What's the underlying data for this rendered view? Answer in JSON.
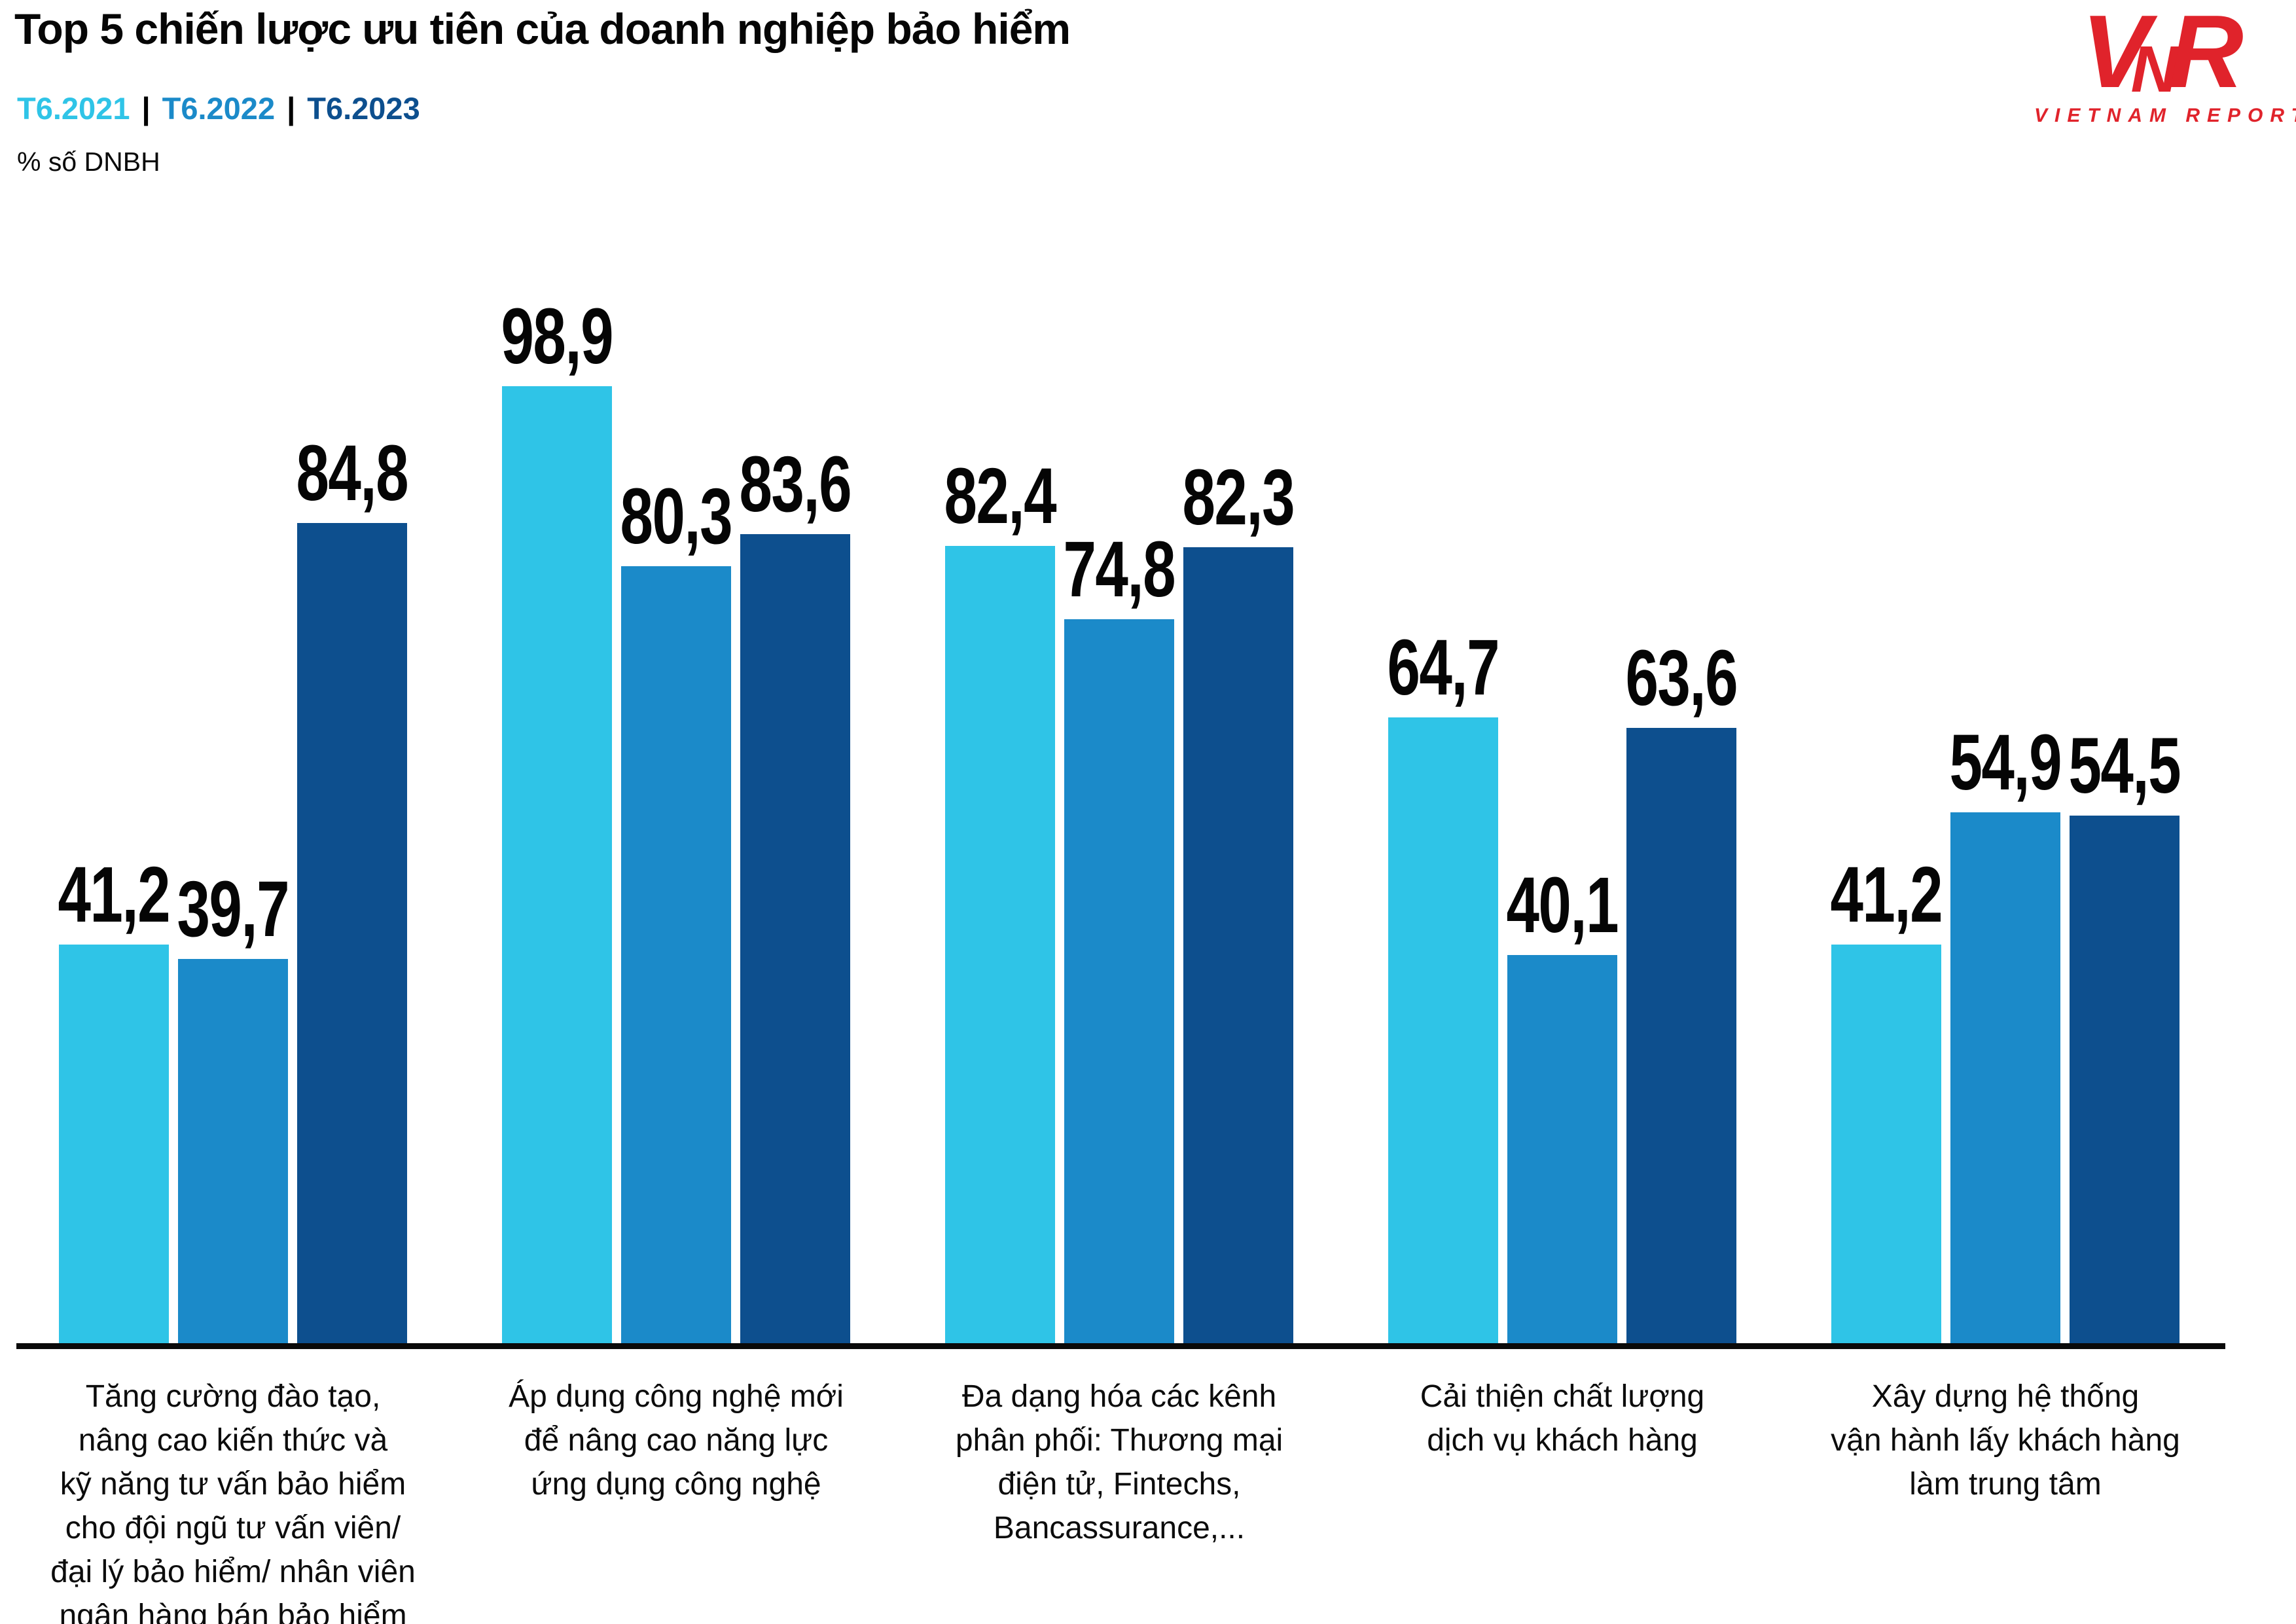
{
  "header": {
    "title": "Top 5 chiến lược ưu tiên của doanh nghiệp bảo hiểm",
    "unit_label": "% số DNBH",
    "legend_separator": "|"
  },
  "legend": [
    {
      "label": "T6.2021",
      "color": "#2FC4E7"
    },
    {
      "label": "T6.2022",
      "color": "#1B8AC9"
    },
    {
      "label": "T6.2023",
      "color": "#0D4F8E"
    }
  ],
  "logo": {
    "letters": [
      "V",
      "N",
      "R"
    ],
    "subtext": "VIETNAM REPORT",
    "color": "#E0232B"
  },
  "chart_data": {
    "type": "bar",
    "title": "Top 5 chiến lược ưu tiên của doanh nghiệp bảo hiểm",
    "ylabel": "% số DNBH",
    "ylim": [
      0,
      100
    ],
    "grid": false,
    "legend_position": "top-left",
    "value_decimal_separator": ",",
    "axis_color": "#0a0a0a",
    "categories": [
      "Tăng cường đào tạo,\nnâng cao kiến thức và\nkỹ năng tư vấn bảo hiểm\ncho đội ngũ tư vấn viên/\nđại lý bảo hiểm/ nhân viên\nngân hàng bán bảo hiểm",
      "Áp dụng công nghệ mới\nđể nâng cao năng lực\nứng dụng công nghệ",
      "Đa dạng hóa các kênh\nphân phối: Thương mại\nđiện tử, Fintechs,\nBancassurance,...",
      "Cải thiện chất lượng\ndịch vụ khách hàng",
      "Xây dựng hệ thống\nvận hành lấy khách hàng\nlàm trung tâm"
    ],
    "series": [
      {
        "name": "T6.2021",
        "color": "#2FC4E7",
        "values": [
          41.2,
          98.9,
          82.4,
          64.7,
          41.2
        ],
        "labels": [
          "41,2",
          "98,9",
          "82,4",
          "64,7",
          "41,2"
        ]
      },
      {
        "name": "T6.2022",
        "color": "#1B8AC9",
        "values": [
          39.7,
          80.3,
          74.8,
          40.1,
          54.9
        ],
        "labels": [
          "39,7",
          "80,3",
          "74,8",
          "40,1",
          "54,9"
        ]
      },
      {
        "name": "T6.2023",
        "color": "#0D4F8E",
        "values": [
          84.8,
          83.6,
          82.3,
          63.6,
          54.5
        ],
        "labels": [
          "84,8",
          "83,6",
          "82,3",
          "63,6",
          "54,5"
        ]
      }
    ]
  }
}
